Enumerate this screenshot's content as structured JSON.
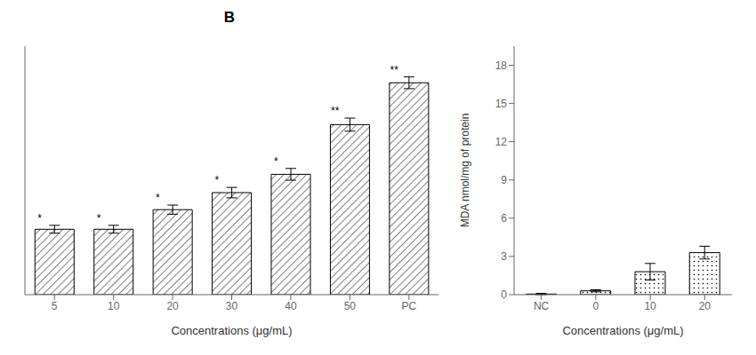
{
  "chart_data": [
    {
      "type": "bar",
      "title": "B",
      "categories": [
        "5",
        "10",
        "20",
        "30",
        "40",
        "50",
        "PC"
      ],
      "values": [
        5.0,
        5.0,
        6.5,
        7.8,
        9.2,
        13.0,
        16.2
      ],
      "errors": [
        0.3,
        0.3,
        0.35,
        0.4,
        0.45,
        0.5,
        0.45
      ],
      "annotations": [
        "*",
        "*",
        "*",
        "*",
        "*",
        "**",
        "**"
      ],
      "xlabel": "Concentrations (μg/mL)",
      "ylim": [
        0,
        19
      ],
      "tick_labels": "x",
      "color": "#ffffff"
    },
    {
      "type": "bar",
      "categories": [
        "NC",
        "0",
        "10",
        "20"
      ],
      "values": [
        0.05,
        0.3,
        1.8,
        3.3
      ],
      "errors": [
        0.05,
        0.08,
        0.65,
        0.5
      ],
      "xlabel": "Concentrations (μg/mL)",
      "ylabel": "MDA nmol/mg of protein",
      "ylim": [
        0,
        19.5
      ],
      "yticks": [
        0,
        3,
        6,
        9,
        12,
        15,
        18
      ],
      "color": "#ffffff"
    }
  ]
}
